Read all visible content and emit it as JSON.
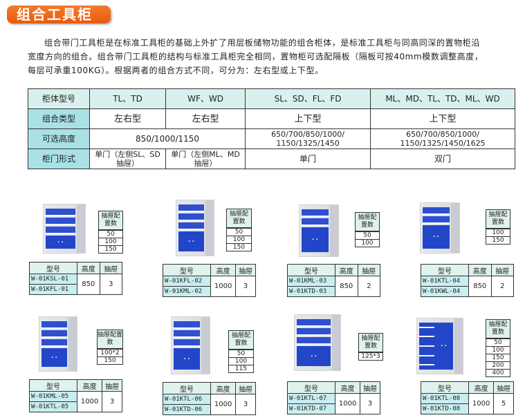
{
  "title": "组合工具柜",
  "intro": "组合带门工具柜是在标准工具柜的基础上外扩了用层板储物功能的组合柜体，是标准工具柜与同高同深的置物柜沿宽度方向的组合。组合带门工具柜的结构与标准工具柜完全相同，置物柜可选配隔板（隔板可按40mm模数调整高度，每层可承重100KG）。根据两者的组合方式不同，可分为：左右型或上下型。",
  "spec": {
    "rows": [
      {
        "label": "柜体型号",
        "cells": [
          "TL、TD",
          "WF、WD",
          "SL、SD、FL、FD",
          "ML、MD、TL、TD、ML、WD"
        ]
      },
      {
        "label": "组合类型",
        "cells": [
          "左右型",
          "左右型",
          "上下型",
          "上下型"
        ]
      },
      {
        "label": "可选高度",
        "cells": [
          "850/1000/1150",
          "650/700/850/1000/ 1150/1325/1450",
          "650/700/850/1000/ 1150/1325/1450/1625"
        ]
      },
      {
        "label": "柜门形式",
        "cells": [
          "单门（左侧SL、SD抽屉）",
          "单门（左侧ML、MD抽屉）",
          "单门",
          "双门"
        ]
      }
    ]
  },
  "config_header": "抽屉配置数",
  "table_headers": [
    "型号",
    "高度",
    "抽屉"
  ],
  "products": [
    {
      "models": [
        "W-01KSL-01",
        "W-01KFL-01"
      ],
      "height": "850",
      "drawers": "3",
      "config": [
        "50",
        "100",
        "150"
      ],
      "door": "single"
    },
    {
      "models": [
        "W-01KFL-02",
        "W-01KML-02"
      ],
      "height": "1000",
      "drawers": "3",
      "config": [
        "50",
        "100",
        "150"
      ],
      "door": "single"
    },
    {
      "models": [
        "W-01KML-03",
        "W-01KTD-03"
      ],
      "height": "850",
      "drawers": "2",
      "config": [
        "50",
        "100"
      ],
      "door": "double"
    },
    {
      "models": [
        "W-01KTL-04",
        "W-01KWL-04"
      ],
      "height": "850",
      "drawers": "2",
      "config": [
        "100",
        "150"
      ],
      "door": "double"
    },
    {
      "models": [
        "W-01KML-05",
        "W-01KTL-05"
      ],
      "height": "1000",
      "drawers": "3",
      "config": [
        "100*2",
        "150"
      ],
      "door": "double"
    },
    {
      "models": [
        "W-01KTL-06",
        "W-01KTD-06"
      ],
      "height": "1000",
      "drawers": "3",
      "config": [
        "50",
        "100",
        "115"
      ],
      "door": "double"
    },
    {
      "models": [
        "W-01KTL-07",
        "W-01KTD-07"
      ],
      "height": "1000",
      "drawers": "3",
      "config": [
        "125*3"
      ],
      "door": "double"
    },
    {
      "models": [
        "W-01KTL-08",
        "W-01KTD-08"
      ],
      "height": "1000",
      "drawers": "5",
      "config": [
        "50",
        "100",
        "150",
        "200",
        "400"
      ],
      "door": "side"
    }
  ]
}
